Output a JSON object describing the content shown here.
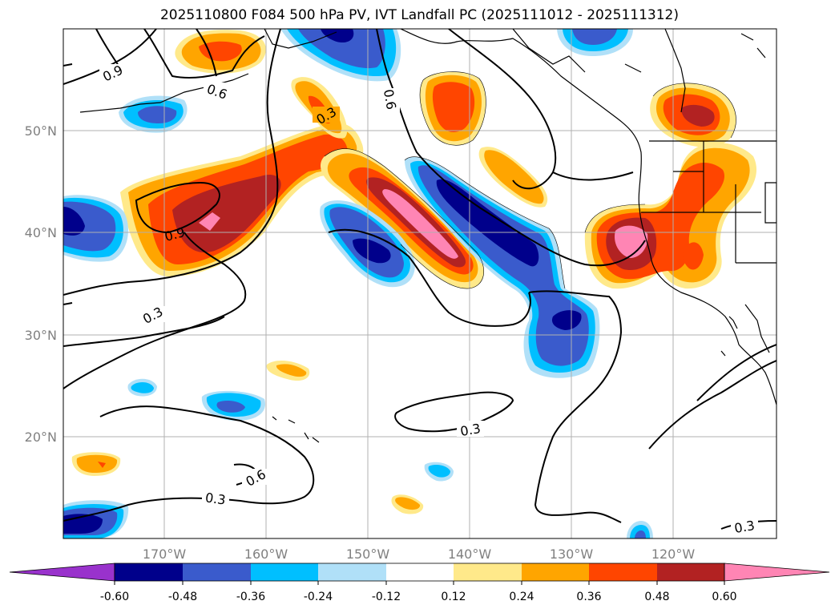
{
  "title": "2025110800 F084 500 hPa PV, IVT Landfall PC (2025111012 - 2025111312)",
  "map": {
    "lon_labels": [
      "170°W",
      "160°W",
      "150°W",
      "140°W",
      "130°W",
      "120°W"
    ],
    "lat_labels": [
      "50°N",
      "40°N",
      "30°N",
      "20°N"
    ],
    "contour_labels": [
      "0.9",
      "0.6",
      "0.3",
      "0.6",
      "0.9",
      "0.3",
      "0.3",
      "0.6",
      "0.3",
      "0.3"
    ],
    "contour_levels": [
      0.3,
      0.6,
      0.9
    ]
  },
  "colorbar": {
    "ticks": [
      "-0.60",
      "-0.48",
      "-0.36",
      "-0.24",
      "-0.12",
      "0.12",
      "0.24",
      "0.36",
      "0.48",
      "0.60"
    ],
    "colors": [
      "#9932cc",
      "#00008b",
      "#3a5bcc",
      "#00bfff",
      "#b0e0f8",
      "#ffffff",
      "#ffe98a",
      "#ffa500",
      "#ff4500",
      "#b22222",
      "#ff85b4"
    ]
  },
  "colors": {
    "purple": "#9932cc",
    "navy": "#00008b",
    "blue": "#3a5bcc",
    "sky": "#00bfff",
    "pale": "#b0e0f8",
    "yellow": "#ffe98a",
    "orange": "#ffa500",
    "red": "#ff4500",
    "dark_red": "#b22222",
    "pink": "#ff85b4"
  }
}
